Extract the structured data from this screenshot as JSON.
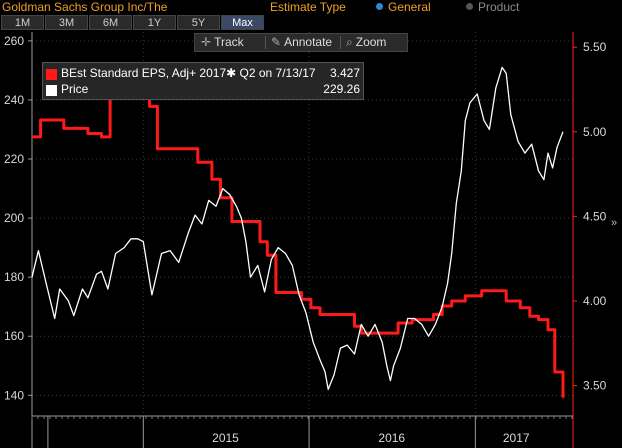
{
  "header": {
    "title": "Goldman Sachs Group Inc/The",
    "estimate_type_label": "Estimate Type",
    "options": [
      {
        "label": "General",
        "selected": true
      },
      {
        "label": "Product",
        "selected": false
      }
    ]
  },
  "ranges": [
    "1M",
    "3M",
    "6M",
    "1Y",
    "5Y",
    "Max"
  ],
  "active_range": "Max",
  "toolbar": {
    "track": "Track",
    "annotate": "Annotate",
    "zoom": "Zoom"
  },
  "legend": [
    {
      "name": "BEst Standard EPS, Adj+ 2017✱ Q2 on 7/13/17",
      "value": "3.427",
      "color": "#ff1a1a"
    },
    {
      "name": "Price",
      "value": "229.26",
      "color": "#ffffff"
    }
  ],
  "side_glyph": "»",
  "chart_data": {
    "type": "line",
    "x_ticks": [
      "2015",
      "2016",
      "2017"
    ],
    "y_left": {
      "ticks": [
        "140",
        "160",
        "180",
        "200",
        "220",
        "240",
        "260"
      ],
      "range": [
        133,
        263
      ]
    },
    "y_right": {
      "ticks": [
        "3.50",
        "4.00",
        "4.50",
        "5.00",
        "5.50"
      ],
      "range": [
        3.32,
        5.59
      ]
    },
    "series": [
      {
        "name": "BEst Standard EPS, Adj+ 2017✱ Q2 on 7/13/17",
        "axis": "right",
        "color": "#ff1a1a",
        "step": true,
        "points": [
          [
            "2014-05-01",
            4.97
          ],
          [
            "2014-05-20",
            5.07
          ],
          [
            "2014-07-10",
            5.02
          ],
          [
            "2014-09-01",
            4.99
          ],
          [
            "2014-10-01",
            4.97
          ],
          [
            "2014-10-20",
            5.21
          ],
          [
            "2015-01-15",
            5.15
          ],
          [
            "2015-02-01",
            4.9
          ],
          [
            "2015-04-01",
            4.9
          ],
          [
            "2015-05-01",
            4.82
          ],
          [
            "2015-06-01",
            4.72
          ],
          [
            "2015-06-20",
            4.61
          ],
          [
            "2015-07-15",
            4.47
          ],
          [
            "2015-09-15",
            4.35
          ],
          [
            "2015-10-01",
            4.27
          ],
          [
            "2015-10-20",
            4.05
          ],
          [
            "2015-12-15",
            4.01
          ],
          [
            "2016-01-05",
            3.96
          ],
          [
            "2016-01-25",
            3.92
          ],
          [
            "2016-03-15",
            3.92
          ],
          [
            "2016-04-10",
            3.85
          ],
          [
            "2016-04-25",
            3.81
          ],
          [
            "2016-06-01",
            3.81
          ],
          [
            "2016-07-15",
            3.87
          ],
          [
            "2016-08-15",
            3.89
          ],
          [
            "2016-10-01",
            3.92
          ],
          [
            "2016-10-20",
            3.97
          ],
          [
            "2016-11-10",
            4.0
          ],
          [
            "2016-12-10",
            4.03
          ],
          [
            "2017-01-15",
            4.06
          ],
          [
            "2017-02-01",
            4.06
          ],
          [
            "2017-03-10",
            4.0
          ],
          [
            "2017-04-10",
            3.96
          ],
          [
            "2017-05-01",
            3.91
          ],
          [
            "2017-05-20",
            3.89
          ],
          [
            "2017-06-10",
            3.83
          ],
          [
            "2017-06-25",
            3.58
          ],
          [
            "2017-07-13",
            3.427
          ]
        ]
      },
      {
        "name": "Price",
        "axis": "left",
        "color": "#ffffff",
        "step": false,
        "points": [
          [
            "2014-05-01",
            180
          ],
          [
            "2014-05-15",
            189
          ],
          [
            "2014-06-01",
            178
          ],
          [
            "2014-06-20",
            166
          ],
          [
            "2014-07-01",
            176
          ],
          [
            "2014-07-20",
            172
          ],
          [
            "2014-08-01",
            167
          ],
          [
            "2014-08-20",
            176
          ],
          [
            "2014-09-01",
            173
          ],
          [
            "2014-09-20",
            181
          ],
          [
            "2014-10-01",
            182
          ],
          [
            "2014-10-15",
            176
          ],
          [
            "2014-11-01",
            188
          ],
          [
            "2014-11-20",
            190
          ],
          [
            "2014-12-05",
            193
          ],
          [
            "2014-12-20",
            193
          ],
          [
            "2015-01-01",
            192
          ],
          [
            "2015-01-20",
            174
          ],
          [
            "2015-02-10",
            188
          ],
          [
            "2015-03-01",
            189
          ],
          [
            "2015-03-20",
            185
          ],
          [
            "2015-04-10",
            195
          ],
          [
            "2015-04-25",
            201
          ],
          [
            "2015-05-10",
            198
          ],
          [
            "2015-05-25",
            206
          ],
          [
            "2015-06-10",
            204
          ],
          [
            "2015-06-25",
            210
          ],
          [
            "2015-07-10",
            208
          ],
          [
            "2015-07-25",
            204
          ],
          [
            "2015-08-05",
            200
          ],
          [
            "2015-08-15",
            192
          ],
          [
            "2015-08-25",
            180
          ],
          [
            "2015-09-10",
            184
          ],
          [
            "2015-09-25",
            175
          ],
          [
            "2015-10-10",
            186
          ],
          [
            "2015-10-25",
            190
          ],
          [
            "2015-11-10",
            188
          ],
          [
            "2015-11-25",
            184
          ],
          [
            "2015-12-10",
            174
          ],
          [
            "2015-12-25",
            168
          ],
          [
            "2016-01-10",
            158
          ],
          [
            "2016-01-25",
            152
          ],
          [
            "2016-02-05",
            148
          ],
          [
            "2016-02-12",
            142
          ],
          [
            "2016-02-25",
            147
          ],
          [
            "2016-03-10",
            156
          ],
          [
            "2016-03-25",
            157
          ],
          [
            "2016-04-10",
            154
          ],
          [
            "2016-04-25",
            164
          ],
          [
            "2016-05-10",
            160
          ],
          [
            "2016-05-25",
            164
          ],
          [
            "2016-06-10",
            158
          ],
          [
            "2016-06-20",
            150
          ],
          [
            "2016-06-28",
            145
          ],
          [
            "2016-07-05",
            150
          ],
          [
            "2016-07-20",
            156
          ],
          [
            "2016-08-05",
            166
          ],
          [
            "2016-08-20",
            166
          ],
          [
            "2016-09-05",
            164
          ],
          [
            "2016-09-20",
            160
          ],
          [
            "2016-10-05",
            164
          ],
          [
            "2016-10-20",
            170
          ],
          [
            "2016-11-01",
            178
          ],
          [
            "2016-11-10",
            188
          ],
          [
            "2016-11-20",
            205
          ],
          [
            "2016-12-01",
            216
          ],
          [
            "2016-12-10",
            233
          ],
          [
            "2016-12-20",
            239
          ],
          [
            "2017-01-05",
            242
          ],
          [
            "2017-01-20",
            233
          ],
          [
            "2017-02-01",
            230
          ],
          [
            "2017-02-15",
            244
          ],
          [
            "2017-03-01",
            251
          ],
          [
            "2017-03-10",
            249
          ],
          [
            "2017-03-20",
            235
          ],
          [
            "2017-04-05",
            226
          ],
          [
            "2017-04-20",
            222
          ],
          [
            "2017-05-05",
            225
          ],
          [
            "2017-05-20",
            216
          ],
          [
            "2017-06-01",
            213
          ],
          [
            "2017-06-10",
            222
          ],
          [
            "2017-06-20",
            217
          ],
          [
            "2017-06-30",
            224
          ],
          [
            "2017-07-13",
            229.26
          ]
        ]
      }
    ]
  }
}
